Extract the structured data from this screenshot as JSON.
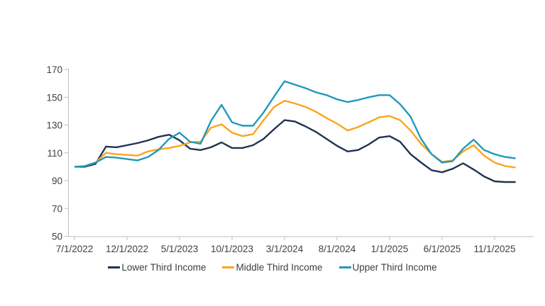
{
  "page": {
    "background_color": "#FFFFFF",
    "title": ""
  },
  "chart_data": {
    "type": "line",
    "title": "",
    "xlabel": "",
    "ylabel": "",
    "grid": false,
    "legend_position": "bottom",
    "axis_color": "#BFBFBF",
    "label_color": "#404040",
    "ylim": [
      50,
      170
    ],
    "yticks": [
      50,
      70,
      90,
      110,
      130,
      150,
      170
    ],
    "x": [
      "7/1/2022",
      "8/1/2022",
      "9/1/2022",
      "10/1/2022",
      "11/1/2022",
      "12/1/2022",
      "1/1/2023",
      "2/1/2023",
      "3/1/2023",
      "4/1/2023",
      "5/1/2023",
      "6/1/2023",
      "7/1/2023",
      "8/1/2023",
      "9/1/2023",
      "10/1/2023",
      "11/1/2023",
      "12/1/2023",
      "1/1/2024",
      "2/1/2024",
      "3/1/2024",
      "4/1/2024",
      "5/1/2024",
      "6/1/2024",
      "7/1/2024",
      "8/1/2024",
      "9/1/2024",
      "10/1/2024",
      "11/1/2024",
      "12/1/2024",
      "1/1/2025",
      "2/1/2025",
      "3/1/2025",
      "4/1/2025",
      "5/1/2025",
      "6/1/2025",
      "7/1/2025",
      "8/1/2025",
      "9/1/2025",
      "10/1/2025",
      "11/1/2025",
      "12/1/2025",
      "1/1/2026"
    ],
    "x_tick_labels": [
      "7/1/2022",
      "12/1/2022",
      "5/1/2023",
      "10/1/2023",
      "3/1/2024",
      "8/1/2024",
      "1/1/2025",
      "6/1/2025",
      "11/1/2025"
    ],
    "x_tick_every": 5,
    "index_base": 100,
    "series": [
      {
        "name": "Lower Third Income",
        "color": "#203352",
        "values": [
          100,
          100,
          102,
          114.5,
          114,
          115.5,
          117,
          119,
          121.5,
          123,
          119,
          113,
          112,
          114,
          117.5,
          113.5,
          113.5,
          115.5,
          120,
          127,
          133.5,
          132.5,
          129,
          125,
          120,
          115,
          111,
          112,
          116,
          121,
          122,
          118,
          109,
          103,
          97.5,
          96,
          98.5,
          102.5,
          98,
          93,
          89.5,
          89,
          89
        ]
      },
      {
        "name": "Middle Third Income",
        "color": "#FBA51B",
        "values": [
          100,
          100.5,
          103,
          110,
          109,
          108.5,
          108,
          111,
          112.5,
          113.5,
          115,
          117.5,
          118,
          128,
          130.5,
          124.5,
          122,
          123.5,
          133.5,
          143,
          147.5,
          145.5,
          143,
          139.5,
          135,
          131,
          126,
          128.5,
          132,
          135.5,
          136.5,
          133.5,
          126,
          116.5,
          109,
          103.5,
          104.5,
          111,
          115.5,
          108,
          103,
          100.5,
          99.5
        ]
      },
      {
        "name": "Upper Third Income",
        "color": "#2199BC",
        "values": [
          100,
          100.5,
          103,
          107,
          106.5,
          105.5,
          104.5,
          107,
          112,
          120,
          124.5,
          118,
          116.5,
          133,
          144.5,
          132,
          129.5,
          129.5,
          139,
          150.5,
          161.5,
          159,
          156.5,
          153.5,
          151.5,
          148.5,
          146.5,
          148,
          150,
          151.5,
          151.5,
          145,
          136,
          120,
          109,
          103,
          104,
          113,
          119.5,
          112,
          109,
          107,
          106
        ]
      }
    ]
  }
}
